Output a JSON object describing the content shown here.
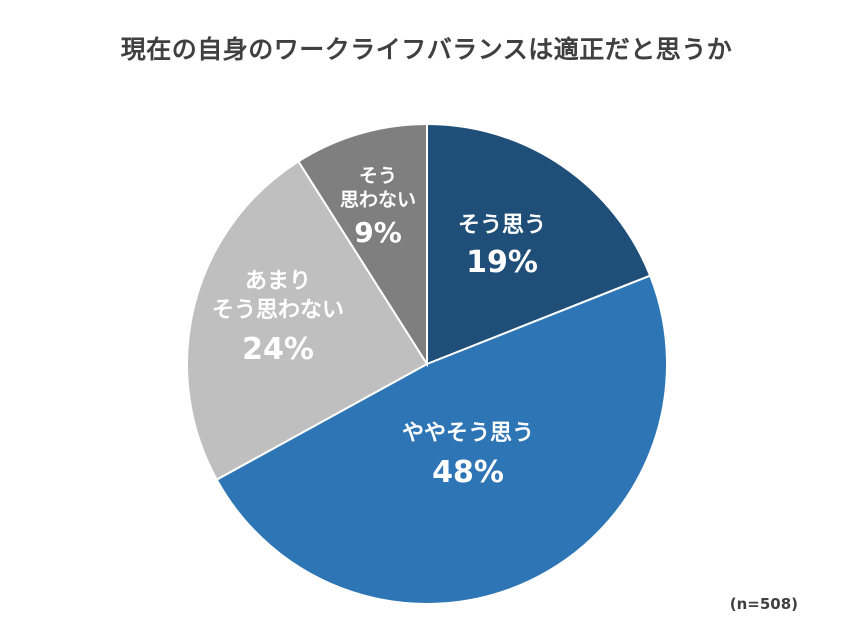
{
  "chart_data": {
    "type": "pie",
    "title": "現在の自身のワークライフバランスは適正だと思うか",
    "note": "(n=508)",
    "start": "12 o'clock",
    "direction": "clockwise",
    "slices": [
      {
        "lines": [
          "そう思う"
        ],
        "pct_label": "19%",
        "value": 19,
        "color": "#1f4e79"
      },
      {
        "lines": [
          "ややそう思う"
        ],
        "pct_label": "48%",
        "value": 48,
        "color": "#2e75b6"
      },
      {
        "lines": [
          "あまり",
          "そう思わない"
        ],
        "pct_label": "24%",
        "value": 24,
        "color": "#bfbfbf"
      },
      {
        "lines": [
          "そう",
          "思わない"
        ],
        "pct_label": "9%",
        "value": 9,
        "color": "#7f7f7f"
      }
    ]
  }
}
